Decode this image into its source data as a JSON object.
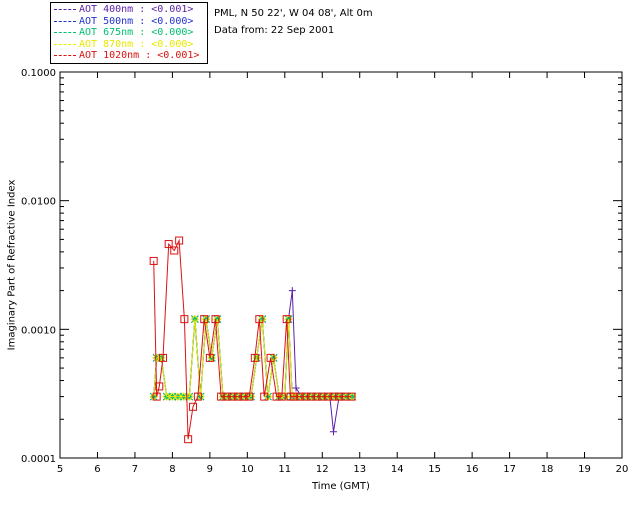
{
  "site": "PML, N 50 22', W 04 08', Alt 0m",
  "date_line": "Data from: 22 Sep 2001",
  "legend": [
    {
      "label": "AOT  400nm : <0.001>",
      "color": "#5a1fa8"
    },
    {
      "label": "AOT  500nm : <0.000>",
      "color": "#2233cc"
    },
    {
      "label": "AOT  675nm : <0.000>",
      "color": "#00c070"
    },
    {
      "label": "AOT  870nm : <0.000>",
      "color": "#e8e800"
    },
    {
      "label": "AOT 1020nm : <0.001>",
      "color": "#dd1111"
    }
  ],
  "chart_data": {
    "type": "line",
    "xlabel": "Time (GMT)",
    "ylabel": "Imaginary Part of Refractive Index",
    "xlim": [
      5,
      20
    ],
    "ylim": [
      0.0001,
      0.1
    ],
    "yscale": "log",
    "xticks": [
      "5",
      "6",
      "7",
      "8",
      "9",
      "10",
      "11",
      "12",
      "13",
      "14",
      "15",
      "16",
      "17",
      "18",
      "19",
      "20"
    ],
    "yticks": [
      {
        "value": 0.0001,
        "label": "0.0001"
      },
      {
        "value": 0.001,
        "label": "0.0010"
      },
      {
        "value": 0.01,
        "label": "0.0100"
      },
      {
        "value": 0.1,
        "label": "0.1000"
      }
    ],
    "grid": false,
    "series": [
      {
        "name": "AOT  400nm : <0.001>",
        "color": "#5a1fa8",
        "marker": "plus",
        "x": [
          7.5,
          7.58,
          7.7,
          7.85,
          8.0,
          8.15,
          8.3,
          8.45,
          8.6,
          8.75,
          8.9,
          9.05,
          9.2,
          9.35,
          9.5,
          9.65,
          9.8,
          9.95,
          10.1,
          10.25,
          10.4,
          10.55,
          10.7,
          10.85,
          11.0,
          11.1,
          11.2,
          11.3,
          11.45,
          11.6,
          11.75,
          11.9,
          12.05,
          12.2,
          12.3,
          12.45,
          12.6,
          12.75
        ],
        "y": [
          0.0003,
          0.0006,
          0.0006,
          0.0003,
          0.0003,
          0.0003,
          0.0003,
          0.0003,
          0.0012,
          0.0003,
          0.0012,
          0.0006,
          0.0012,
          0.0003,
          0.0003,
          0.0003,
          0.0003,
          0.0003,
          0.0003,
          0.0006,
          0.0012,
          0.0003,
          0.0006,
          0.0003,
          0.0003,
          0.0012,
          0.002,
          0.00035,
          0.0003,
          0.0003,
          0.0003,
          0.0003,
          0.0003,
          0.0003,
          0.00016,
          0.0003,
          0.0003,
          0.0003
        ]
      },
      {
        "name": "AOT  500nm : <0.000>",
        "color": "#2233cc",
        "marker": "x",
        "x": [
          7.5,
          7.58,
          7.7,
          7.85,
          8.0,
          8.15,
          8.3,
          8.45,
          8.6,
          8.75,
          8.9,
          9.05,
          9.2,
          9.35,
          9.5,
          9.65,
          9.8,
          9.95,
          10.1,
          10.25,
          10.4,
          10.55,
          10.7,
          10.85,
          11.0,
          11.1,
          11.2,
          11.3,
          11.45,
          11.6,
          11.75,
          11.9,
          12.05,
          12.2,
          12.35,
          12.5,
          12.65,
          12.8
        ],
        "y": [
          0.0003,
          0.0006,
          0.0006,
          0.0003,
          0.0003,
          0.0003,
          0.0003,
          0.0003,
          0.0012,
          0.0003,
          0.0012,
          0.0006,
          0.0012,
          0.0003,
          0.0003,
          0.0003,
          0.0003,
          0.0003,
          0.0003,
          0.0006,
          0.0012,
          0.0003,
          0.0006,
          0.0003,
          0.0003,
          0.0012,
          0.0003,
          0.0003,
          0.0003,
          0.0003,
          0.0003,
          0.0003,
          0.0003,
          0.0003,
          0.0003,
          0.0003,
          0.0003,
          0.0003
        ]
      },
      {
        "name": "AOT  675nm : <0.000>",
        "color": "#00c070",
        "marker": "asterisk",
        "x": [
          7.5,
          7.58,
          7.7,
          7.85,
          8.0,
          8.15,
          8.3,
          8.45,
          8.6,
          8.75,
          8.9,
          9.05,
          9.2,
          9.35,
          9.5,
          9.65,
          9.8,
          9.95,
          10.1,
          10.25,
          10.4,
          10.55,
          10.7,
          10.85,
          11.0,
          11.1,
          11.2,
          11.3,
          11.45,
          11.6,
          11.75,
          11.9,
          12.05,
          12.2,
          12.35,
          12.5,
          12.65,
          12.8
        ],
        "y": [
          0.0003,
          0.0006,
          0.0006,
          0.0003,
          0.0003,
          0.0003,
          0.0003,
          0.0003,
          0.0012,
          0.0003,
          0.0012,
          0.0006,
          0.0012,
          0.0003,
          0.0003,
          0.0003,
          0.0003,
          0.0003,
          0.0003,
          0.0006,
          0.0012,
          0.0003,
          0.0006,
          0.0003,
          0.0003,
          0.0012,
          0.0003,
          0.0003,
          0.0003,
          0.0003,
          0.0003,
          0.0003,
          0.0003,
          0.0003,
          0.0003,
          0.0003,
          0.0003,
          0.0003
        ]
      },
      {
        "name": "AOT  870nm : <0.000>",
        "color": "#e8e800",
        "marker": "diamond",
        "x": [
          7.5,
          7.58,
          7.7,
          7.85,
          8.0,
          8.15,
          8.3,
          8.45,
          8.6,
          8.75,
          8.9,
          9.05,
          9.2,
          9.35,
          9.5,
          9.65,
          9.8,
          9.95,
          10.1,
          10.25,
          10.4,
          10.55,
          10.7,
          10.85,
          11.0,
          11.1,
          11.2,
          11.3,
          11.45,
          11.6,
          11.75,
          11.9,
          12.05,
          12.2,
          12.35,
          12.5,
          12.65,
          12.8
        ],
        "y": [
          0.0003,
          0.0006,
          0.0006,
          0.0003,
          0.0003,
          0.0003,
          0.0003,
          0.0003,
          0.0012,
          0.0003,
          0.0012,
          0.0006,
          0.0012,
          0.0003,
          0.0003,
          0.0003,
          0.0003,
          0.0003,
          0.0003,
          0.0006,
          0.0012,
          0.0003,
          0.0006,
          0.0003,
          0.0003,
          0.0012,
          0.0003,
          0.0003,
          0.0003,
          0.0003,
          0.0003,
          0.0003,
          0.0003,
          0.0003,
          0.0003,
          0.0003,
          0.0003,
          0.0003
        ]
      },
      {
        "name": "AOT 1020nm : <0.001>",
        "color": "#dd1111",
        "marker": "square",
        "x": [
          7.5,
          7.58,
          7.65,
          7.75,
          7.9,
          8.05,
          8.18,
          8.32,
          8.42,
          8.55,
          8.68,
          8.85,
          9.0,
          9.15,
          9.3,
          9.45,
          9.6,
          9.75,
          9.9,
          10.05,
          10.2,
          10.32,
          10.45,
          10.62,
          10.78,
          10.92,
          11.05,
          11.15,
          11.25,
          11.4,
          11.55,
          11.7,
          11.85,
          12.0,
          12.15,
          12.3,
          12.45,
          12.6,
          12.78
        ],
        "y": [
          0.0034,
          0.0003,
          0.00036,
          0.0006,
          0.0046,
          0.0041,
          0.0049,
          0.0012,
          0.00014,
          0.00025,
          0.0003,
          0.0012,
          0.0006,
          0.0012,
          0.0003,
          0.0003,
          0.0003,
          0.0003,
          0.0003,
          0.0003,
          0.0006,
          0.0012,
          0.0003,
          0.0006,
          0.0003,
          0.0003,
          0.0012,
          0.0003,
          0.0003,
          0.0003,
          0.0003,
          0.0003,
          0.0003,
          0.0003,
          0.0003,
          0.0003,
          0.0003,
          0.0003,
          0.0003
        ]
      }
    ]
  }
}
